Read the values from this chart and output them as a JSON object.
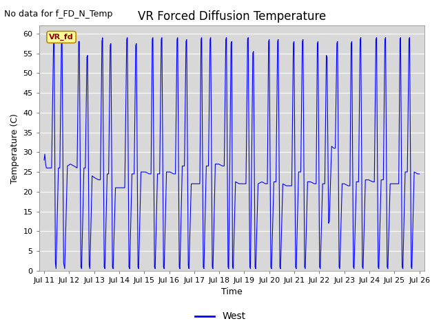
{
  "title": "VR Forced Diffusion Temperature",
  "xlabel": "Time",
  "ylabel": "Temperature (C)",
  "no_data_label": "No data for f_FD_N_Temp",
  "vr_fd_label": "VR_fd",
  "legend_label": "West",
  "ylim": [
    0,
    62
  ],
  "yticks": [
    0,
    5,
    10,
    15,
    20,
    25,
    30,
    35,
    40,
    45,
    50,
    55,
    60
  ],
  "line_color": "#0000FF",
  "bg_color": "#D8D8D8",
  "fig_bg_color": "#FFFFFF",
  "title_fontsize": 12,
  "axis_label_fontsize": 9,
  "tick_fontsize": 8,
  "no_data_fontsize": 9,
  "vr_fd_fontsize": 8,
  "x_tick_labels": [
    "Jul 11",
    "Jul 12",
    "Jul 13",
    "Jul 14",
    "Jul 15",
    "Jul 16",
    "Jul 17",
    "Jul 18",
    "Jul 19",
    "Jul 20",
    "Jul 21",
    "Jul 22",
    "Jul 23",
    "Jul 24",
    "Jul 25",
    "Jul 26"
  ],
  "x_tick_positions": [
    11,
    12,
    13,
    14,
    15,
    16,
    17,
    18,
    19,
    20,
    21,
    22,
    23,
    24,
    25,
    26
  ]
}
